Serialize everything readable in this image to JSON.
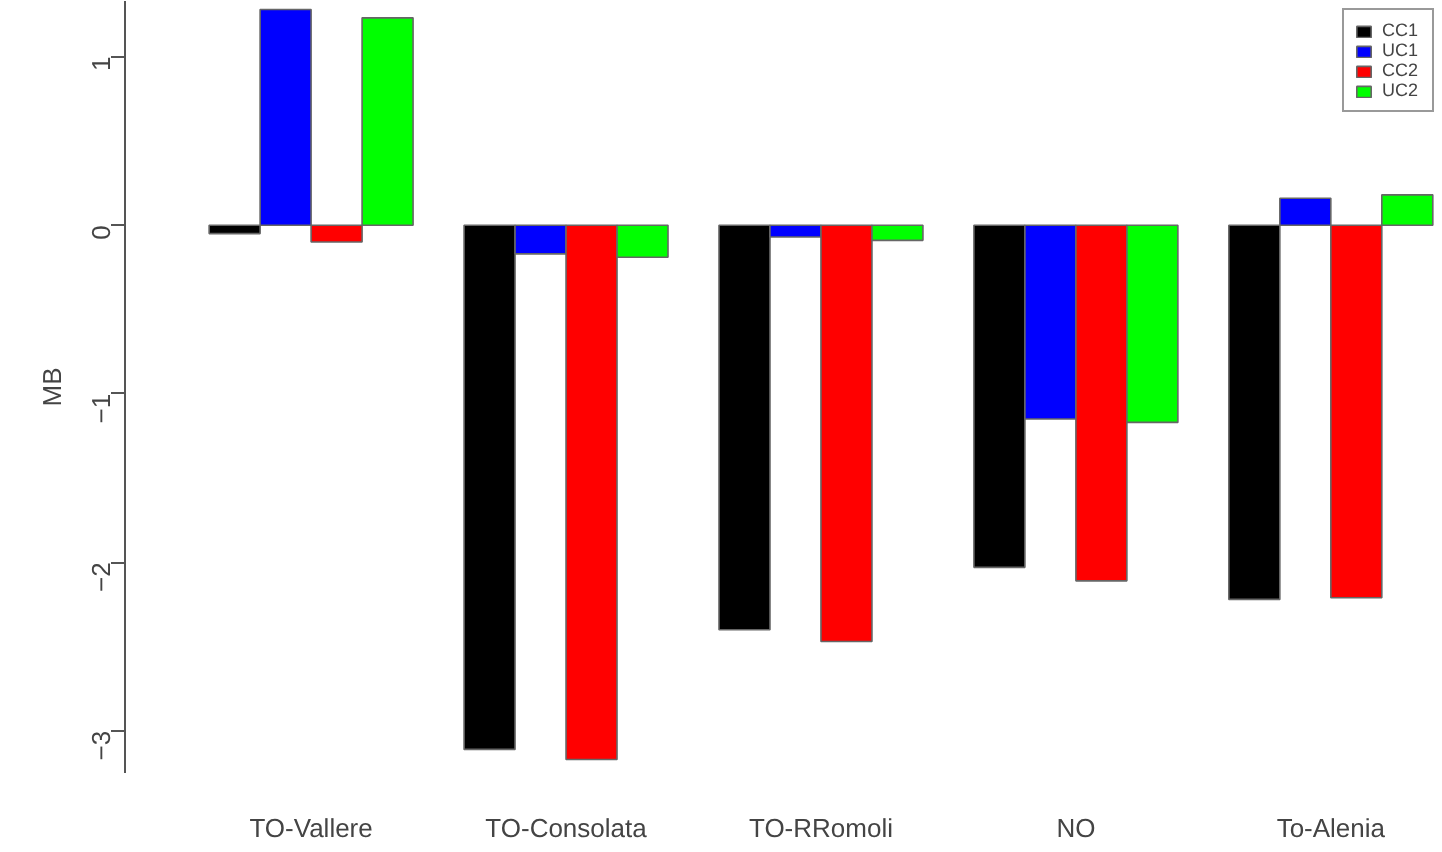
{
  "chart_data": {
    "type": "bar",
    "ylabel": "MB",
    "categories": [
      "TO-Vallere",
      "TO-Consolata",
      "TO-RRomoli",
      "NO",
      "To-Alenia"
    ],
    "series": [
      {
        "name": "CC1",
        "color": "#000000",
        "values": [
          -0.05,
          -3.11,
          -2.4,
          -2.03,
          -2.22
        ]
      },
      {
        "name": "UC1",
        "color": "#0000ff",
        "values": [
          1.28,
          -0.17,
          -0.07,
          -1.15,
          0.16
        ]
      },
      {
        "name": "CC2",
        "color": "#ff0000",
        "values": [
          -0.1,
          -3.17,
          -2.47,
          -2.11,
          -2.21
        ]
      },
      {
        "name": "UC2",
        "color": "#00ff00",
        "values": [
          1.23,
          -0.19,
          -0.09,
          -1.17,
          0.18
        ]
      }
    ],
    "ylim": [
      -3.25,
      1.33
    ],
    "yticks": [
      -3,
      -2,
      -1,
      0,
      1
    ],
    "grid": false,
    "legend": "top right"
  }
}
